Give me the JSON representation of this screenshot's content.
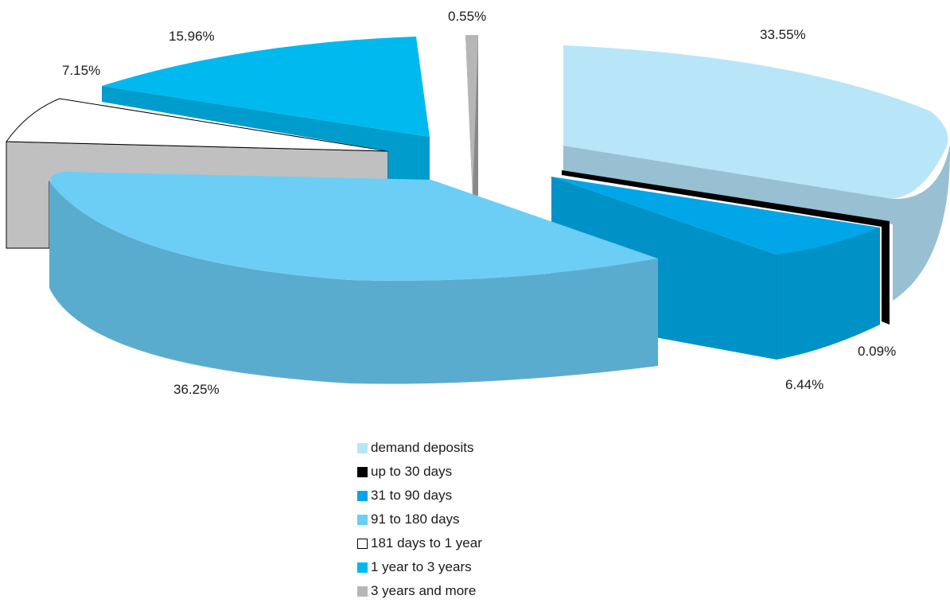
{
  "chart_data": {
    "type": "pie",
    "style": "3d-exploded",
    "legend_position": "bottom",
    "slices": [
      {
        "label": "demand deposits",
        "value": 33.55,
        "value_label": "33.55%",
        "color": "#b9e5f8",
        "side_color": "#98bfd2"
      },
      {
        "label": "up to 30 days",
        "value": 0.09,
        "value_label": "0.09%",
        "color": "#000000",
        "side_color": "#000000"
      },
      {
        "label": "31 to 90 days",
        "value": 6.44,
        "value_label": "6.44%",
        "color": "#00a6e8",
        "side_color": "#0092c6"
      },
      {
        "label": "91 to 180 days",
        "value": 36.25,
        "value_label": "36.25%",
        "color": "#6ccef5",
        "side_color": "#5aaccf"
      },
      {
        "label": "181 days to 1 year",
        "value": 7.15,
        "value_label": "7.15%",
        "color": "#ffffff",
        "side_color": "#c0c0c0"
      },
      {
        "label": "1 year to 3 years",
        "value": 15.96,
        "value_label": "15.96%",
        "color": "#00b9ef",
        "side_color": "#009ccc"
      },
      {
        "label": "3 years and more",
        "value": 0.55,
        "value_label": "0.55%",
        "color": "#b6b6b6",
        "side_color": "#888888"
      }
    ]
  }
}
